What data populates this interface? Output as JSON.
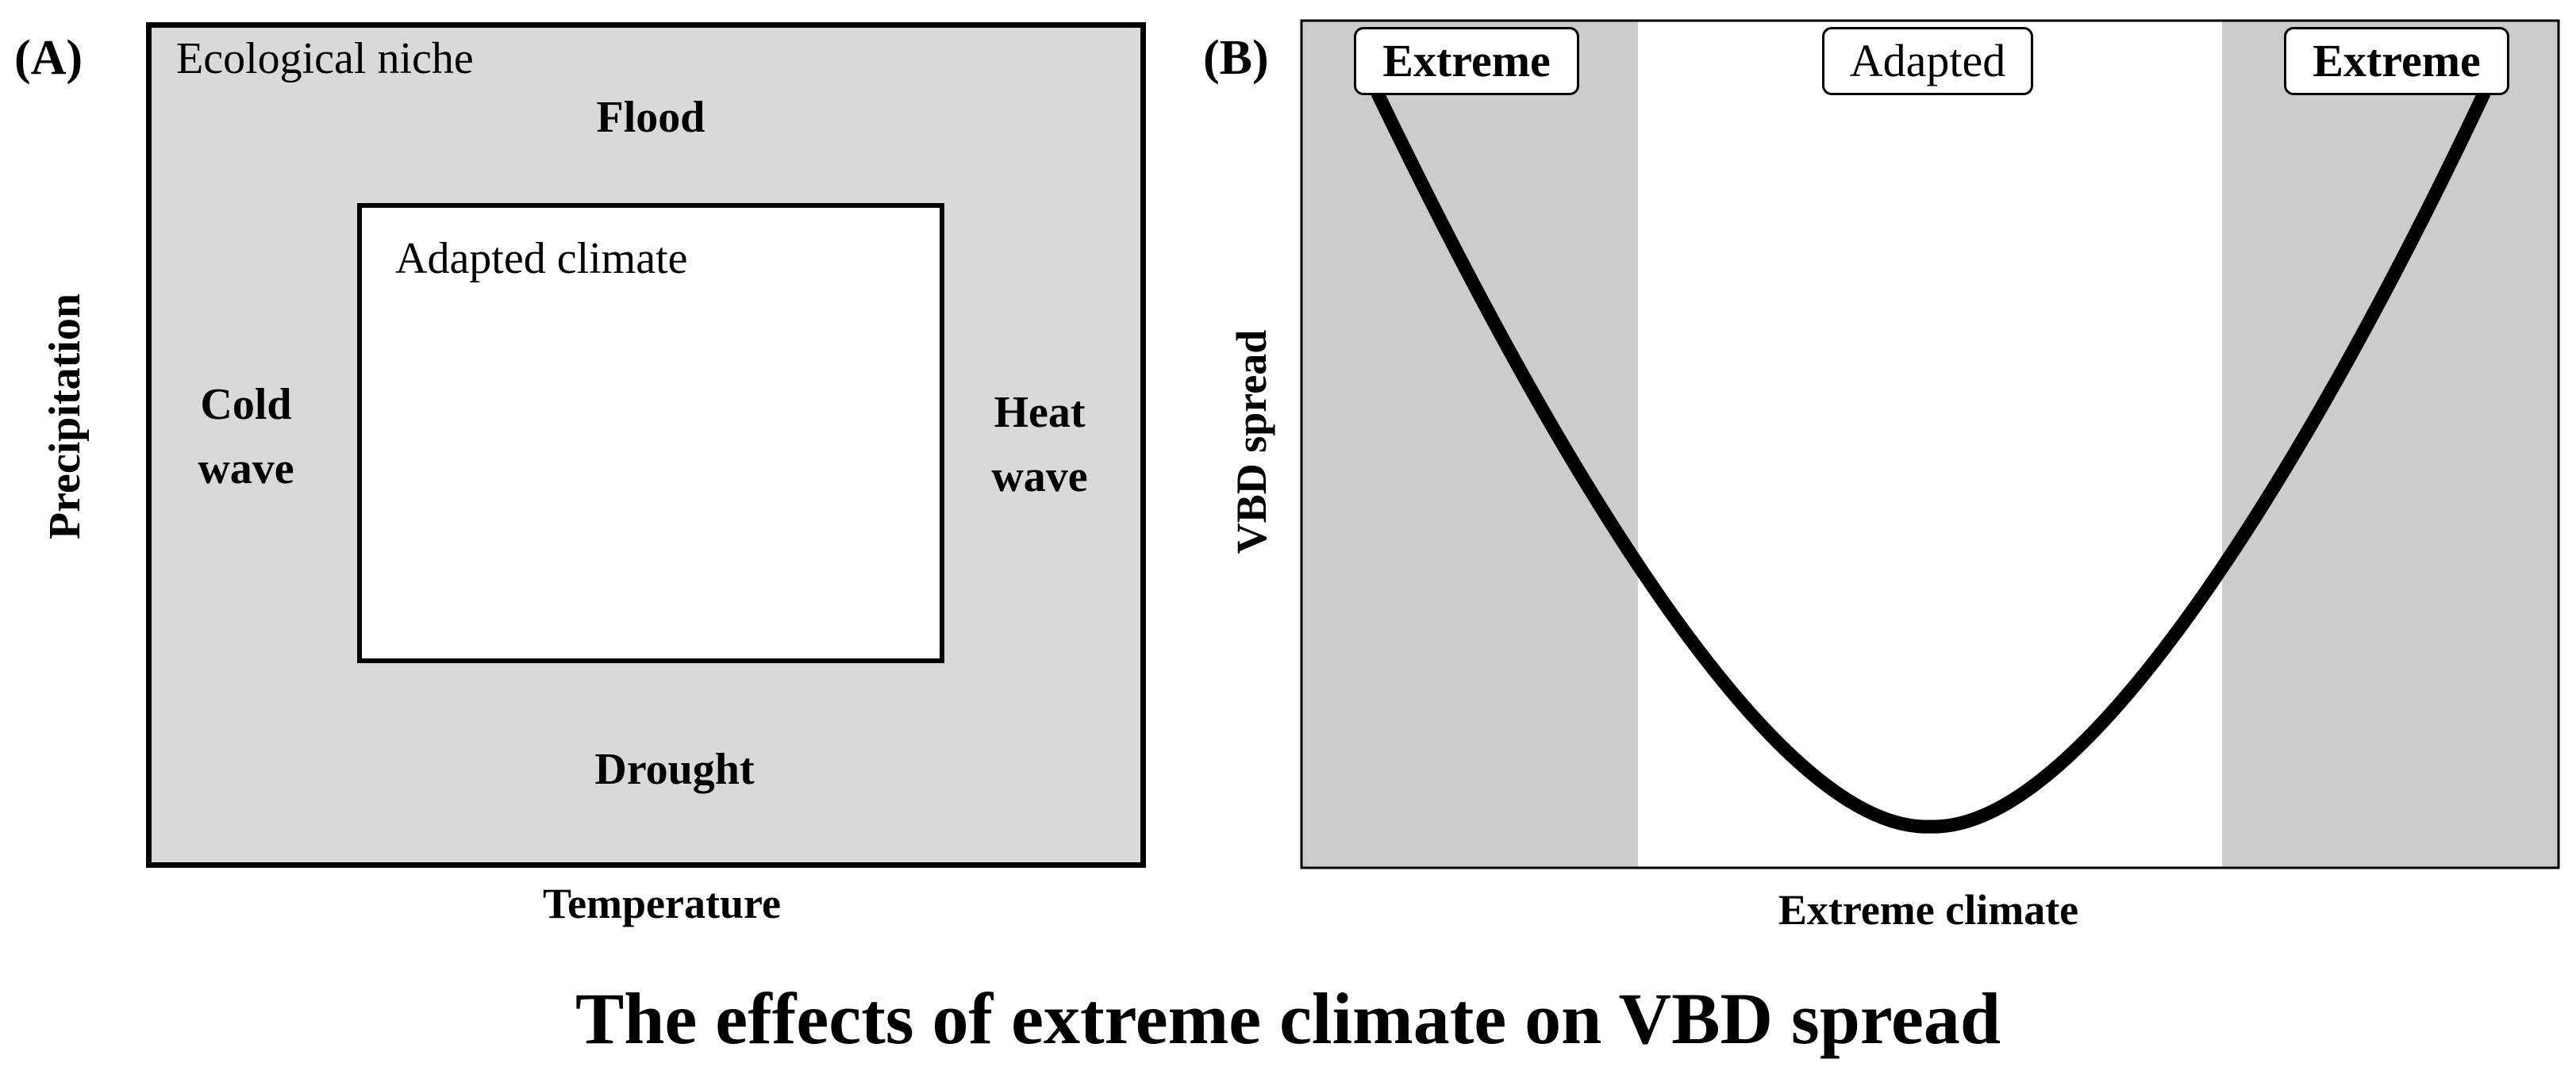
{
  "panel_a": {
    "label": "(A)",
    "niche_label": "Ecological niche",
    "adapted_label": "Adapted climate",
    "flood": "Flood",
    "drought": "Drought",
    "cold_wave": "Cold\nwave",
    "heat_wave": "Heat\nwave",
    "x_axis": "Temperature",
    "y_axis": "Precipitation",
    "colors": {
      "niche_fill": "#d9d9d9",
      "adapted_fill": "#ffffff",
      "border": "#000000"
    }
  },
  "panel_b": {
    "label": "(B)",
    "zones": [
      {
        "name": "Extreme",
        "type": "extreme"
      },
      {
        "name": "Adapted",
        "type": "adapted"
      },
      {
        "name": "Extreme",
        "type": "extreme"
      }
    ],
    "x_axis": "Extreme climate",
    "y_axis": "VBD spread",
    "curve_shape": "U-shaped: VBD spread high at both extremes, minimal in adapted climate",
    "colors": {
      "extreme_fill": "#cccccc",
      "adapted_fill": "#ffffff",
      "curve": "#000000"
    }
  },
  "caption": "The effects of extreme climate on VBD spread"
}
